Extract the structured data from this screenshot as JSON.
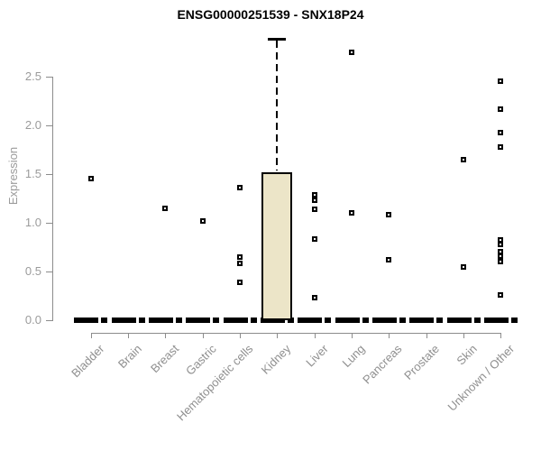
{
  "title": "ENSG00000251539 - SNX18P24",
  "chart_data": {
    "type": "box",
    "title": "ENSG00000251539 - SNX18P24",
    "ylabel": "Expression",
    "xlabel": "",
    "ylim": [
      0,
      2.9
    ],
    "yticks": [
      0,
      0.5,
      1,
      1.5,
      2,
      2.5
    ],
    "grid": false,
    "legend": false,
    "categories": [
      "Bladder",
      "Brain",
      "Breast",
      "Gastric",
      "Hematopoietic cells",
      "Kidney",
      "Liver",
      "Lung",
      "Pancreas",
      "Prostate",
      "Skin",
      "Unknown / Other"
    ],
    "boxes": [
      {
        "category": "Bladder",
        "q1": 0,
        "median": 0,
        "q3": 0,
        "whisker_low": 0,
        "whisker_high": 0,
        "outliers": [
          1.45
        ]
      },
      {
        "category": "Brain",
        "q1": 0,
        "median": 0,
        "q3": 0,
        "whisker_low": 0,
        "whisker_high": 0,
        "outliers": []
      },
      {
        "category": "Breast",
        "q1": 0,
        "median": 0,
        "q3": 0,
        "whisker_low": 0,
        "whisker_high": 0,
        "outliers": [
          1.15
        ]
      },
      {
        "category": "Gastric",
        "q1": 0,
        "median": 0,
        "q3": 0,
        "whisker_low": 0,
        "whisker_high": 0,
        "outliers": [
          1.02
        ]
      },
      {
        "category": "Hematopoietic cells",
        "q1": 0,
        "median": 0,
        "q3": 0,
        "whisker_low": 0,
        "whisker_high": 0,
        "outliers": [
          1.36,
          0.65,
          0.58,
          0.39
        ]
      },
      {
        "category": "Kidney",
        "q1": 0,
        "median": 0.02,
        "q3": 1.52,
        "whisker_low": 0,
        "whisker_high": 2.89,
        "outliers": []
      },
      {
        "category": "Liver",
        "q1": 0,
        "median": 0,
        "q3": 0,
        "whisker_low": 0,
        "whisker_high": 0,
        "outliers": [
          1.29,
          1.23,
          1.14,
          0.83,
          0.23
        ]
      },
      {
        "category": "Lung",
        "q1": 0,
        "median": 0,
        "q3": 0,
        "whisker_low": 0,
        "whisker_high": 0,
        "outliers": [
          2.75,
          1.1
        ]
      },
      {
        "category": "Pancreas",
        "q1": 0,
        "median": 0,
        "q3": 0,
        "whisker_low": 0,
        "whisker_high": 0,
        "outliers": [
          1.08,
          0.62
        ]
      },
      {
        "category": "Prostate",
        "q1": 0,
        "median": 0,
        "q3": 0,
        "whisker_low": 0,
        "whisker_high": 0,
        "outliers": []
      },
      {
        "category": "Skin",
        "q1": 0,
        "median": 0,
        "q3": 0,
        "whisker_low": 0,
        "whisker_high": 0,
        "outliers": [
          1.65,
          0.55
        ]
      },
      {
        "category": "Unknown / Other",
        "q1": 0,
        "median": 0,
        "q3": 0,
        "whisker_low": 0,
        "whisker_high": 0,
        "outliers": [
          2.45,
          2.17,
          1.93,
          1.78,
          0.82,
          0.78,
          0.7,
          0.66,
          0.6,
          0.26
        ]
      }
    ],
    "style": {
      "box_fill": "#ece5c8",
      "box_border": "#000000",
      "point_color": "#000000",
      "axis_color": "#8c8c8c",
      "y_tick_label_color": "#9b9b9b",
      "category_label_color": "#8f8f8f",
      "title_color": "#000000",
      "background": "#ffffff"
    }
  }
}
